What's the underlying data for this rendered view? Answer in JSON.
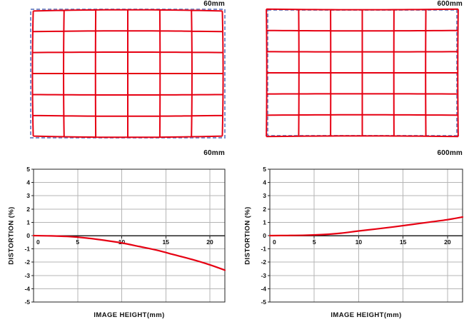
{
  "figure": {
    "type": "lens-distortion-figure",
    "description": "Grid distortion diagrams and distortion curves at two focal lengths"
  },
  "colors": {
    "curve_red": "#e60012",
    "reference_blue": "#7b8fca",
    "grid_gray": "#b5b5b5",
    "axis_dark": "#222222",
    "text": "#111111"
  },
  "grids": [
    {
      "title": "60mm",
      "rows": 6,
      "cols": 6,
      "shape": "barrel",
      "corner_distortion_percent": -2.6
    },
    {
      "title": "600mm",
      "rows": 6,
      "cols": 6,
      "shape": "pincushion",
      "corner_distortion_percent": 1.4
    }
  ],
  "chart_data": [
    {
      "type": "line",
      "title": "60mm",
      "xlabel": "IMAGE HEIGHT(mm)",
      "ylabel": "DISTORTION (%)",
      "xlim": [
        0,
        21.7
      ],
      "ylim": [
        -5,
        5
      ],
      "x_ticks": [
        0,
        5,
        10,
        15,
        20
      ],
      "y_ticks": [
        5,
        4,
        3,
        2,
        1,
        0,
        -1,
        -2,
        -3,
        -4,
        -5
      ],
      "grid": true,
      "legend_position": "none",
      "series": [
        {
          "name": "distortion",
          "color": "#e60012",
          "x": [
            0,
            2,
            4,
            6,
            8,
            10,
            12,
            14,
            16,
            18,
            20,
            21.7
          ],
          "y": [
            0,
            -0.02,
            -0.07,
            -0.18,
            -0.35,
            -0.55,
            -0.82,
            -1.1,
            -1.45,
            -1.8,
            -2.2,
            -2.6
          ]
        }
      ]
    },
    {
      "type": "line",
      "title": "600mm",
      "xlabel": "IMAGE HEIGHT(mm)",
      "ylabel": "DISTORTION (%)",
      "xlim": [
        0,
        21.7
      ],
      "ylim": [
        -5,
        5
      ],
      "x_ticks": [
        0,
        5,
        10,
        15,
        20
      ],
      "y_ticks": [
        5,
        4,
        3,
        2,
        1,
        0,
        -1,
        -2,
        -3,
        -4,
        -5
      ],
      "grid": true,
      "legend_position": "none",
      "series": [
        {
          "name": "distortion",
          "color": "#e60012",
          "x": [
            0,
            2,
            4,
            6,
            8,
            10,
            12,
            14,
            16,
            18,
            20,
            21.7
          ],
          "y": [
            0,
            0.01,
            0.03,
            0.08,
            0.18,
            0.35,
            0.5,
            0.66,
            0.84,
            1.02,
            1.2,
            1.4
          ]
        }
      ]
    }
  ]
}
